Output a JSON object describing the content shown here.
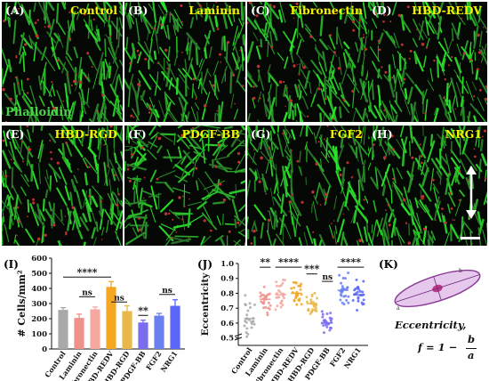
{
  "panels": [
    {
      "label": "(A)",
      "title": "Control",
      "seed": 1
    },
    {
      "label": "(B)",
      "title": "Laminin",
      "seed": 2
    },
    {
      "label": "(C)",
      "title": "Fibronectin",
      "seed": 3
    },
    {
      "label": "(D)",
      "title": "HBD-REDV",
      "seed": 4
    },
    {
      "label": "(E)",
      "title": "HBD-RGD",
      "seed": 5
    },
    {
      "label": "(F)",
      "title": "PDGF-BB",
      "seed": 6
    },
    {
      "label": "(G)",
      "title": "FGF2",
      "seed": 7
    },
    {
      "label": "(H)",
      "title": "NRG1",
      "seed": 8
    }
  ],
  "stain_label": "Phalloidin",
  "colors": {
    "fiber": "#3cc83c",
    "nucleus": "#c03030",
    "title": "#f4f400"
  },
  "chart_data": [
    {
      "type": "bar",
      "panel_label": "(I)",
      "ylabel": "# Cells/mm²",
      "ylim": [
        0,
        600
      ],
      "yticks": [
        "0",
        "100",
        "200",
        "300",
        "400",
        "500",
        "600"
      ],
      "categories": [
        "Control",
        "Laminin",
        "Fibronectin",
        "HBD-REDV",
        "HBD-RGD",
        "PDGF-BB",
        "FGF2",
        "NRG1"
      ],
      "values": [
        258,
        205,
        262,
        410,
        250,
        175,
        220,
        285
      ],
      "errors": [
        15,
        25,
        15,
        35,
        35,
        15,
        15,
        40
      ],
      "colors": [
        "#a9a9a9",
        "#f0908a",
        "#f4a8a0",
        "#f5a623",
        "#e8b84a",
        "#7b6cf0",
        "#6a80f0",
        "#5a66f5"
      ],
      "annotations": [
        {
          "text": "****",
          "from": 0,
          "to": 3,
          "y": 475
        },
        {
          "text": "ns",
          "from": 1,
          "to": 2,
          "y": 345
        },
        {
          "text": "ns",
          "from": 3,
          "to": 4,
          "y": 310
        },
        {
          "text": "**",
          "from": 5,
          "to": 5,
          "y": 222
        },
        {
          "text": "ns",
          "from": 6,
          "to": 7,
          "y": 360
        }
      ]
    },
    {
      "type": "scatter",
      "panel_label": "(J)",
      "ylabel": "Eccentricity",
      "ylim": [
        0.45,
        1.0
      ],
      "yticks": [
        "0.5",
        "0.6",
        "0.7",
        "0.8",
        "0.9",
        "1.0"
      ],
      "categories": [
        "Control",
        "Laminin",
        "Fibronectin",
        "HBD-REDV",
        "HBD-RGD",
        "PDGF-BB",
        "FGF2",
        "NRG1"
      ],
      "means": [
        0.63,
        0.76,
        0.79,
        0.8,
        0.73,
        0.6,
        0.82,
        0.79
      ],
      "spreads": [
        0.13,
        0.1,
        0.09,
        0.09,
        0.08,
        0.06,
        0.09,
        0.09
      ],
      "colors": [
        "#a9a9a9",
        "#f0908a",
        "#f4a8a0",
        "#f5a623",
        "#e8b84a",
        "#7b6cf0",
        "#6a80f0",
        "#5a66f5"
      ],
      "annotations": [
        {
          "text": "**",
          "from": 1,
          "to": 1,
          "y": 0.975
        },
        {
          "text": "****",
          "from": 2,
          "to": 3,
          "y": 0.975
        },
        {
          "text": "***",
          "from": 4,
          "to": 4,
          "y": 0.93
        },
        {
          "text": "ns",
          "from": 5,
          "to": 5,
          "y": 0.88
        },
        {
          "text": "****",
          "from": 6,
          "to": 7,
          "y": 0.975
        }
      ]
    }
  ],
  "schematic": {
    "panel_label": "(K)",
    "caption": "Eccentricity,",
    "formula_lhs": "f = 1 −",
    "formula_num": "b",
    "formula_den": "a",
    "axis_a": "a",
    "axis_b": "b"
  }
}
